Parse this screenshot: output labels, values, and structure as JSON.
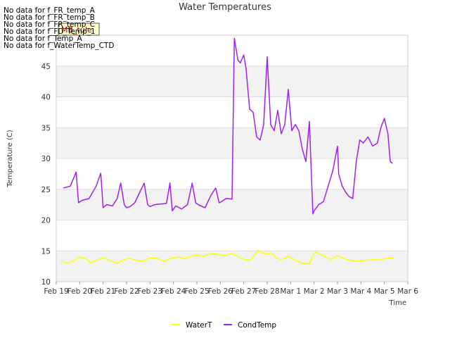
{
  "chart_data": {
    "type": "line",
    "title": "Water Temperatures",
    "xlabel": "Time",
    "ylabel": "Temperature (C)",
    "ylim": [
      10,
      50
    ],
    "y_ticks": [
      "10",
      "15",
      "20",
      "25",
      "30",
      "35",
      "40",
      "45"
    ],
    "x_ticks": [
      "Feb 19",
      "Feb 20",
      "Feb 21",
      "Feb 22",
      "Feb 23",
      "Feb 24",
      "Feb 25",
      "Feb 26",
      "Feb 27",
      "Feb 28",
      "Mar 1",
      "Mar 2",
      "Mar 3",
      "Mar 4",
      "Mar 5",
      "Mar 6"
    ],
    "grid": true,
    "background": "alternating gray bands",
    "legend_position": "bottom-center",
    "no_data_messages": [
      "No data for f_FR_temp_A",
      "No data for f_FR_temp_B",
      "No data for f_FR_temp_C",
      "No data for f_FD_Temp_1",
      "No data for f_Temp_A",
      "No data for f_WaterTemp_CTD"
    ],
    "tooltip_label": "MB_tule",
    "series": [
      {
        "name": "WaterT",
        "color": "#ffff00",
        "x": [
          0.2,
          0.5,
          0.8,
          1.0,
          1.2,
          1.5,
          1.8,
          2.0,
          2.3,
          2.6,
          2.9,
          3.1,
          3.4,
          3.7,
          4.0,
          4.3,
          4.6,
          4.9,
          5.2,
          5.5,
          5.8,
          6.0,
          6.3,
          6.6,
          6.9,
          7.2,
          7.5,
          7.8,
          8.0,
          8.3,
          8.6,
          8.9,
          9.2,
          9.4,
          9.6,
          9.9,
          10.2,
          10.5,
          10.8,
          11.0,
          11.1,
          11.4,
          11.7,
          12.0,
          12.4,
          12.8,
          13.1,
          13.5,
          13.8,
          14.1,
          14.4
        ],
        "values": [
          13.3,
          13.0,
          13.5,
          14.0,
          13.8,
          13.1,
          13.6,
          13.9,
          13.4,
          13.0,
          13.6,
          13.8,
          13.5,
          13.3,
          13.9,
          13.8,
          13.3,
          13.8,
          14.0,
          13.7,
          14.2,
          14.3,
          14.1,
          14.6,
          14.4,
          14.2,
          14.6,
          14.0,
          13.6,
          13.5,
          15.1,
          14.5,
          14.6,
          13.8,
          13.6,
          14.1,
          13.5,
          13.0,
          12.9,
          14.6,
          14.8,
          14.2,
          13.6,
          14.2,
          13.6,
          13.3,
          13.4,
          13.6,
          13.5,
          13.8,
          13.9
        ]
      },
      {
        "name": "CondTemp",
        "color": "#a020f0",
        "x": [
          0.3,
          0.6,
          0.85,
          0.95,
          1.1,
          1.4,
          1.7,
          1.9,
          2.0,
          2.15,
          2.4,
          2.6,
          2.75,
          2.9,
          3.0,
          3.15,
          3.35,
          3.6,
          3.75,
          3.9,
          4.0,
          4.2,
          4.45,
          4.7,
          4.85,
          4.95,
          5.1,
          5.35,
          5.6,
          5.8,
          5.95,
          6.1,
          6.35,
          6.6,
          6.8,
          6.95,
          7.05,
          7.25,
          7.5,
          7.6,
          7.75,
          7.85,
          8.0,
          8.1,
          8.25,
          8.4,
          8.55,
          8.7,
          8.85,
          9.0,
          9.15,
          9.3,
          9.45,
          9.6,
          9.75,
          9.9,
          10.05,
          10.2,
          10.35,
          10.5,
          10.65,
          10.8,
          10.95,
          11.0,
          11.2,
          11.4,
          11.6,
          11.8,
          12.0,
          12.05,
          12.2,
          12.35,
          12.5,
          12.65,
          12.8,
          12.95,
          13.1,
          13.3,
          13.5,
          13.7,
          13.85,
          14.0,
          14.15,
          14.25,
          14.35
        ],
        "values": [
          25.2,
          25.5,
          27.8,
          22.8,
          23.2,
          23.5,
          25.5,
          27.6,
          22.0,
          22.5,
          22.3,
          23.5,
          26.0,
          22.5,
          22.0,
          22.2,
          22.8,
          24.8,
          26.0,
          22.5,
          22.2,
          22.5,
          22.6,
          22.7,
          26.0,
          21.5,
          22.3,
          21.8,
          22.5,
          26.0,
          22.8,
          22.4,
          22.0,
          24.0,
          25.2,
          22.8,
          23.0,
          23.5,
          23.4,
          49.5,
          46.0,
          45.5,
          46.8,
          44.5,
          38.0,
          37.5,
          33.5,
          33.0,
          35.5,
          46.5,
          35.5,
          34.5,
          37.8,
          34.0,
          35.5,
          41.2,
          34.5,
          35.5,
          34.5,
          31.5,
          29.5,
          36.0,
          21.0,
          21.5,
          22.5,
          23.0,
          25.5,
          28.0,
          32.0,
          27.5,
          25.5,
          24.5,
          23.8,
          23.5,
          29.5,
          33.0,
          32.5,
          33.5,
          32.0,
          32.5,
          35.0,
          36.5,
          34.0,
          29.5,
          29.2
        ]
      }
    ]
  }
}
